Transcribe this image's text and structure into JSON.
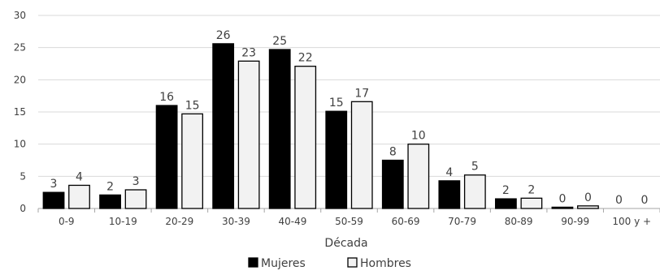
{
  "chart_data": {
    "type": "bar",
    "title": "",
    "xlabel": "Década",
    "ylabel": "",
    "ylim": [
      0,
      30
    ],
    "yticks": [
      0,
      5,
      10,
      15,
      20,
      25,
      30
    ],
    "grid": "horizontal",
    "legend_position": "bottom",
    "categories": [
      "0-9",
      "10-19",
      "20-29",
      "30-39",
      "40-49",
      "50-59",
      "60-69",
      "70-79",
      "80-89",
      "90-99",
      "100 y +"
    ],
    "series": [
      {
        "name": "Mujeres",
        "color": "#000000",
        "values": [
          2.5,
          2.1,
          16.0,
          25.6,
          24.7,
          15.1,
          7.5,
          4.3,
          1.5,
          0.2,
          0.0
        ],
        "labels": [
          "3",
          "2",
          "16",
          "26",
          "25",
          "15",
          "8",
          "4",
          "2",
          "0",
          "0"
        ]
      },
      {
        "name": "Hombres",
        "color": "#f2f2f2",
        "values": [
          3.6,
          2.9,
          14.7,
          22.9,
          22.1,
          16.6,
          10.0,
          5.2,
          1.6,
          0.4,
          0.0
        ],
        "labels": [
          "4",
          "3",
          "15",
          "23",
          "22",
          "17",
          "10",
          "5",
          "2",
          "0",
          "0"
        ]
      }
    ]
  }
}
